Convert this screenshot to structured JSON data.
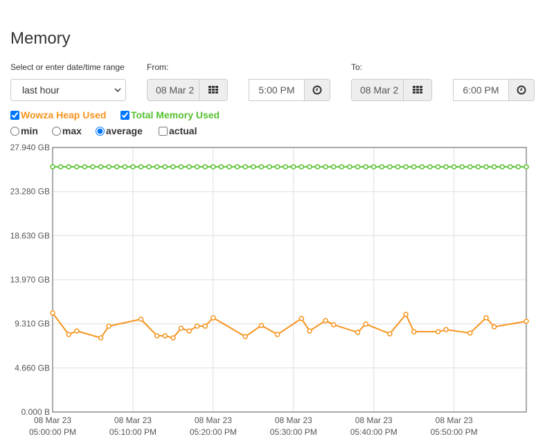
{
  "title": "Memory",
  "controls": {
    "range_label": "Select or enter date/time range",
    "range_value": "last hour",
    "from_label": "From:",
    "from_date": "08 Mar 2",
    "from_time": "5:00 PM",
    "to_label": "To:",
    "to_date": "08 Mar 2",
    "to_time": "6:00 PM"
  },
  "options": {
    "labels": [
      "min",
      "max",
      "average"
    ],
    "selected": 2,
    "actual": "actual"
  },
  "chart_data": {
    "type": "line",
    "x": [
      "05:00:00 PM",
      "05:01:00 PM",
      "05:02:00 PM",
      "05:03:00 PM",
      "05:04:00 PM",
      "05:05:00 PM",
      "05:06:00 PM",
      "05:07:00 PM",
      "05:08:00 PM",
      "05:09:00 PM",
      "05:10:00 PM",
      "05:11:00 PM",
      "05:12:00 PM",
      "05:13:00 PM",
      "05:14:00 PM",
      "05:15:00 PM",
      "05:16:00 PM",
      "05:17:00 PM",
      "05:18:00 PM",
      "05:19:00 PM",
      "05:20:00 PM",
      "05:21:00 PM",
      "05:22:00 PM",
      "05:23:00 PM",
      "05:24:00 PM",
      "05:25:00 PM",
      "05:26:00 PM",
      "05:27:00 PM",
      "05:28:00 PM",
      "05:29:00 PM",
      "05:30:00 PM",
      "05:31:00 PM",
      "05:32:00 PM",
      "05:33:00 PM",
      "05:34:00 PM",
      "05:35:00 PM",
      "05:36:00 PM",
      "05:37:00 PM",
      "05:38:00 PM",
      "05:39:00 PM",
      "05:40:00 PM",
      "05:41:00 PM",
      "05:42:00 PM",
      "05:43:00 PM",
      "05:44:00 PM",
      "05:45:00 PM",
      "05:46:00 PM",
      "05:47:00 PM",
      "05:48:00 PM",
      "05:49:00 PM",
      "05:50:00 PM",
      "05:51:00 PM",
      "05:52:00 PM",
      "05:53:00 PM",
      "05:54:00 PM",
      "05:55:00 PM",
      "05:56:00 PM",
      "05:57:00 PM",
      "05:58:00 PM",
      "05:59:00 PM"
    ],
    "series": [
      {
        "name": "Wowza Heap Used",
        "color": "#f7941d",
        "x": [
          "05:00:00 PM",
          "05:02:00 PM",
          "05:03:00 PM",
          "05:06:00 PM",
          "05:07:00 PM",
          "05:11:00 PM",
          "05:13:00 PM",
          "05:14:00 PM",
          "05:15:00 PM",
          "05:16:00 PM",
          "05:17:00 PM",
          "05:18:00 PM",
          "05:19:00 PM",
          "05:20:00 PM",
          "05:24:00 PM",
          "05:26:00 PM",
          "05:28:00 PM",
          "05:31:00 PM",
          "05:32:00 PM",
          "05:34:00 PM",
          "05:35:00 PM",
          "05:38:00 PM",
          "05:39:00 PM",
          "05:42:00 PM",
          "05:44:00 PM",
          "05:45:00 PM",
          "05:48:00 PM",
          "05:49:00 PM",
          "05:52:00 PM",
          "05:54:00 PM",
          "05:55:00 PM",
          "05:59:00 PM"
        ],
        "values": [
          10.46,
          8.19,
          8.56,
          7.83,
          9.07,
          9.8,
          8.05,
          8.05,
          7.83,
          8.85,
          8.56,
          9.07,
          9.07,
          9.95,
          7.97,
          9.14,
          8.19,
          9.87,
          8.56,
          9.65,
          9.22,
          8.41,
          9.29,
          8.26,
          10.31,
          8.48,
          8.48,
          8.7,
          8.34,
          9.95,
          9.0,
          9.58
        ]
      },
      {
        "name": "Total Memory Used",
        "color": "#55c12f",
        "values": [
          25.9,
          25.9,
          25.9,
          25.9,
          25.9,
          25.9,
          25.9,
          25.9,
          25.9,
          25.9,
          25.9,
          25.9,
          25.9,
          25.9,
          25.9,
          25.9,
          25.9,
          25.9,
          25.9,
          25.9,
          25.9,
          25.9,
          25.9,
          25.9,
          25.9,
          25.9,
          25.9,
          25.9,
          25.9,
          25.9,
          25.9,
          25.9,
          25.9,
          25.9,
          25.9,
          25.9,
          25.9,
          25.9,
          25.9,
          25.9,
          25.9,
          25.9,
          25.9,
          25.9,
          25.9,
          25.9,
          25.9,
          25.9,
          25.9,
          25.9,
          25.9,
          25.9,
          25.9,
          25.9,
          25.9,
          25.9,
          25.9,
          25.9,
          25.9,
          25.9
        ]
      }
    ],
    "xlim": [
      "05:00:00 PM",
      "05:59:00 PM"
    ],
    "xticks": [
      {
        "date": "08 Mar 23",
        "time": "05:00:00 PM"
      },
      {
        "date": "08 Mar 23",
        "time": "05:10:00 PM"
      },
      {
        "date": "08 Mar 23",
        "time": "05:20:00 PM"
      },
      {
        "date": "08 Mar 23",
        "time": "05:30:00 PM"
      },
      {
        "date": "08 Mar 23",
        "time": "05:40:00 PM"
      },
      {
        "date": "08 Mar 23",
        "time": "05:50:00 PM"
      }
    ],
    "ylim": [
      0,
      27.94
    ],
    "yticks": [
      {
        "value": 0,
        "label": "0.000 B"
      },
      {
        "value": 4.66,
        "label": "4.660 GB"
      },
      {
        "value": 9.31,
        "label": "9.310 GB"
      },
      {
        "value": 13.97,
        "label": "13.970 GB"
      },
      {
        "value": 18.63,
        "label": "18.630 GB"
      },
      {
        "value": 23.28,
        "label": "23.280 GB"
      },
      {
        "value": 27.94,
        "label": "27.940 GB"
      }
    ],
    "grid": true
  }
}
